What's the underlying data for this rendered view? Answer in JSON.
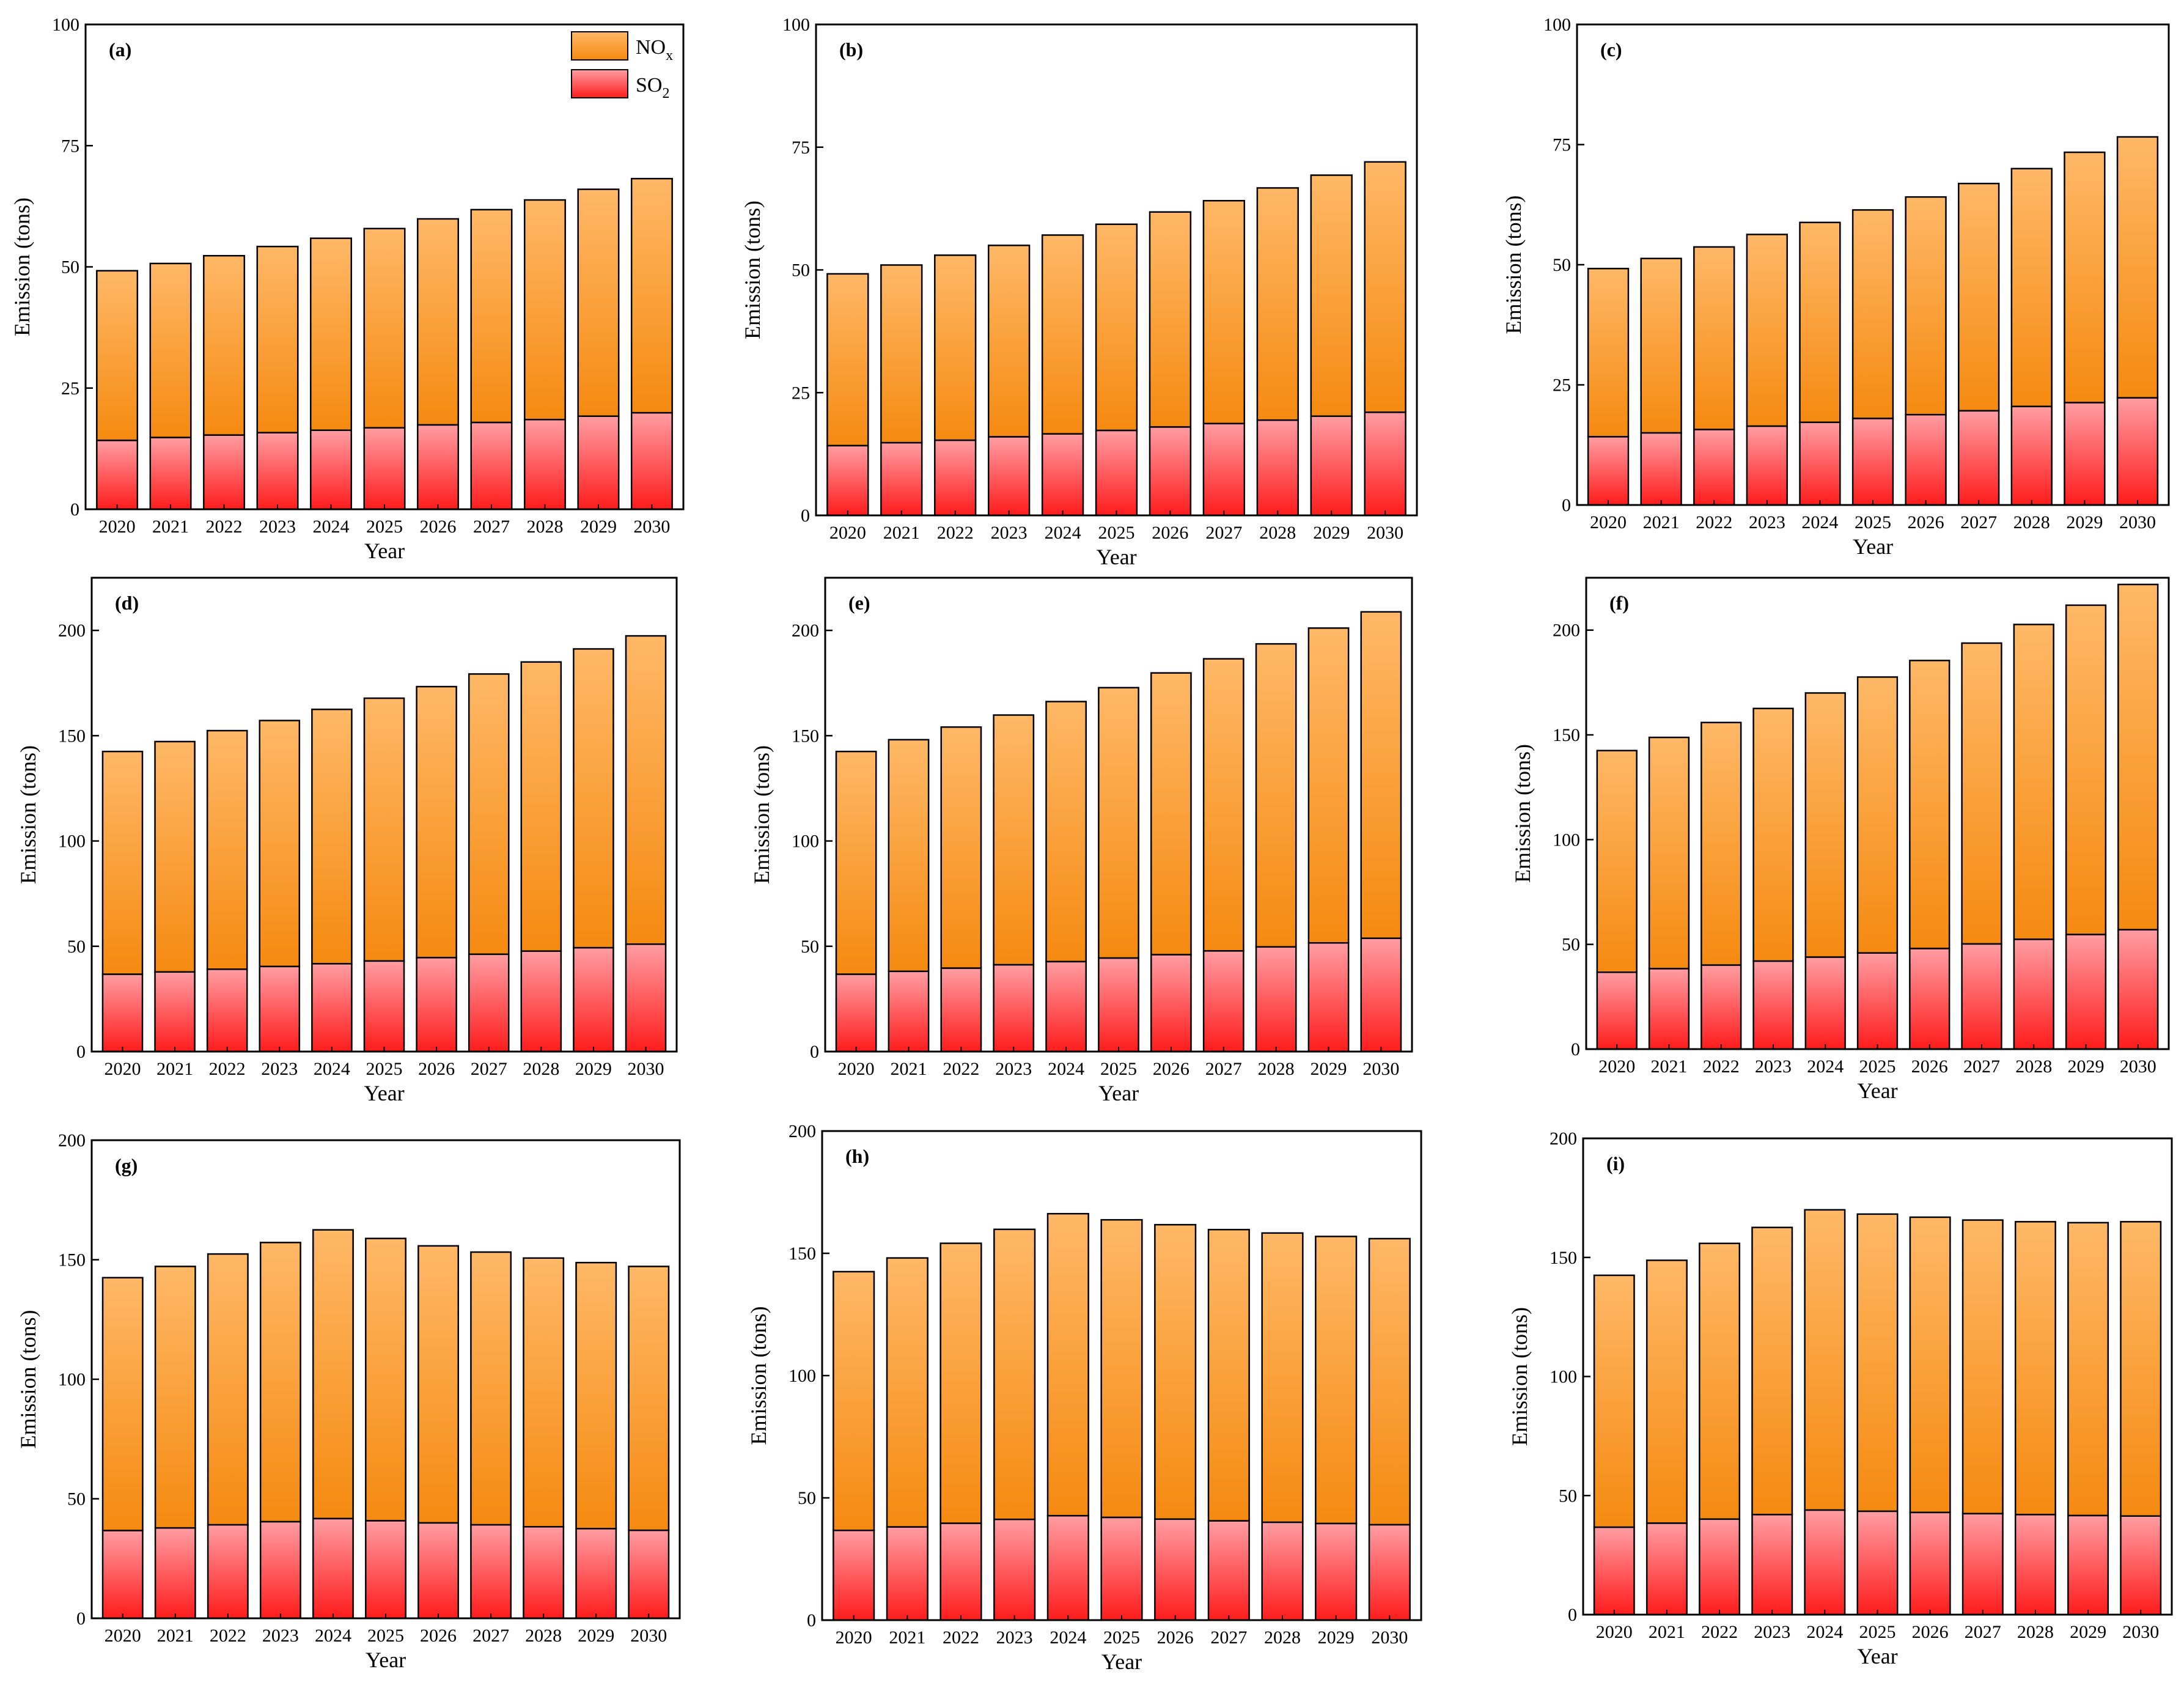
{
  "colors": {
    "nox_top": "#ffb867",
    "nox_bottom": "#f58a10",
    "so2_top": "#ff9da2",
    "so2_bottom": "#ff1c1c",
    "axis": "#000000"
  },
  "legend": {
    "nox_main": "NO",
    "nox_sub": "x",
    "so2_main": "SO",
    "so2_sub": "2"
  },
  "chart_data": [
    {
      "type": "bar",
      "stacked": true,
      "label": "(a)",
      "xlabel": "Year",
      "ylabel": "Emission (tons)",
      "ylim": [
        0,
        100
      ],
      "yticks": [
        0,
        25,
        50,
        75,
        100
      ],
      "categories": [
        "2020",
        "2021",
        "2022",
        "2023",
        "2024",
        "2025",
        "2026",
        "2027",
        "2028",
        "2029",
        "2030"
      ],
      "series": [
        {
          "name": "SO2",
          "values": [
            14.2,
            14.8,
            15.3,
            15.8,
            16.3,
            16.8,
            17.4,
            17.9,
            18.5,
            19.2,
            19.9
          ]
        },
        {
          "name": "NOx",
          "values": [
            35.0,
            35.9,
            37.0,
            38.4,
            39.6,
            41.1,
            42.5,
            43.9,
            45.3,
            46.8,
            48.3
          ]
        }
      ],
      "totals": [
        49.2,
        50.7,
        52.3,
        54.2,
        55.9,
        57.9,
        59.9,
        61.8,
        63.8,
        66.0,
        68.2
      ]
    },
    {
      "type": "bar",
      "stacked": true,
      "label": "(b)",
      "xlabel": "Year",
      "ylabel": "Emission (tons)",
      "ylim": [
        0,
        100
      ],
      "yticks": [
        0,
        25,
        50,
        75,
        100
      ],
      "categories": [
        "2020",
        "2021",
        "2022",
        "2023",
        "2024",
        "2025",
        "2026",
        "2027",
        "2028",
        "2029",
        "2030"
      ],
      "series": [
        {
          "name": "SO2",
          "values": [
            14.2,
            14.8,
            15.3,
            16.0,
            16.6,
            17.3,
            18.0,
            18.7,
            19.4,
            20.2,
            21.0
          ]
        },
        {
          "name": "NOx",
          "values": [
            35.0,
            36.2,
            37.7,
            39.0,
            40.5,
            42.0,
            43.8,
            45.4,
            47.3,
            49.1,
            51.0
          ]
        }
      ],
      "totals": [
        49.2,
        51.0,
        53.0,
        55.0,
        57.1,
        59.3,
        61.8,
        64.1,
        66.7,
        69.3,
        72.0
      ]
    },
    {
      "type": "bar",
      "stacked": true,
      "label": "(c)",
      "xlabel": "Year",
      "ylabel": "Emission (tons)",
      "ylim": [
        0,
        100
      ],
      "yticks": [
        0,
        25,
        50,
        75,
        100
      ],
      "categories": [
        "2020",
        "2021",
        "2022",
        "2023",
        "2024",
        "2025",
        "2026",
        "2027",
        "2028",
        "2029",
        "2030"
      ],
      "series": [
        {
          "name": "SO2",
          "values": [
            14.2,
            15.0,
            15.7,
            16.4,
            17.2,
            18.0,
            18.8,
            19.6,
            20.5,
            21.3,
            22.3
          ]
        },
        {
          "name": "NOx",
          "values": [
            35.0,
            36.3,
            38.0,
            39.9,
            41.6,
            43.4,
            45.3,
            47.3,
            49.5,
            52.1,
            54.3
          ]
        }
      ],
      "totals": [
        49.2,
        51.3,
        53.7,
        56.3,
        58.8,
        61.4,
        64.1,
        66.9,
        70.0,
        73.4,
        76.6
      ]
    },
    {
      "type": "bar",
      "stacked": true,
      "label": "(d)",
      "xlabel": "Year",
      "ylabel": "Emission (tons)",
      "ylim": [
        0,
        225
      ],
      "yticks": [
        0,
        50,
        100,
        150,
        200
      ],
      "categories": [
        "2020",
        "2021",
        "2022",
        "2023",
        "2024",
        "2025",
        "2026",
        "2027",
        "2028",
        "2029",
        "2030"
      ],
      "series": [
        {
          "name": "SO2",
          "values": [
            36.7,
            37.8,
            39.1,
            40.4,
            41.7,
            43.0,
            44.6,
            46.2,
            47.7,
            49.3,
            51.0
          ]
        },
        {
          "name": "NOx",
          "values": [
            105.8,
            109.4,
            113.3,
            116.8,
            120.8,
            124.8,
            128.7,
            133.1,
            137.3,
            141.9,
            146.4
          ]
        }
      ],
      "totals": [
        142.5,
        147.2,
        152.4,
        157.2,
        162.5,
        167.8,
        173.3,
        179.3,
        185.0,
        191.2,
        197.4
      ]
    },
    {
      "type": "bar",
      "stacked": true,
      "label": "(e)",
      "xlabel": "Year",
      "ylabel": "Emission (tons)",
      "ylim": [
        0,
        225
      ],
      "yticks": [
        0,
        50,
        100,
        150,
        200
      ],
      "categories": [
        "2020",
        "2021",
        "2022",
        "2023",
        "2024",
        "2025",
        "2026",
        "2027",
        "2028",
        "2029",
        "2030"
      ],
      "series": [
        {
          "name": "SO2",
          "values": [
            36.7,
            38.1,
            39.6,
            41.2,
            42.7,
            44.4,
            46.0,
            47.8,
            49.7,
            51.6,
            53.8
          ]
        },
        {
          "name": "NOx",
          "values": [
            105.8,
            110.0,
            114.5,
            118.6,
            123.5,
            128.4,
            133.8,
            138.7,
            143.9,
            149.5,
            155.0
          ]
        }
      ],
      "totals": [
        142.5,
        148.1,
        154.1,
        159.8,
        166.2,
        172.8,
        179.8,
        186.5,
        193.6,
        201.1,
        208.8
      ]
    },
    {
      "type": "bar",
      "stacked": true,
      "label": "(f)",
      "xlabel": "Year",
      "ylabel": "Emission (tons)",
      "ylim": [
        0,
        225
      ],
      "yticks": [
        0,
        50,
        100,
        150,
        200
      ],
      "categories": [
        "2020",
        "2021",
        "2022",
        "2023",
        "2024",
        "2025",
        "2026",
        "2027",
        "2028",
        "2029",
        "2030"
      ],
      "series": [
        {
          "name": "SO2",
          "values": [
            36.7,
            38.4,
            40.1,
            42.0,
            43.9,
            45.9,
            48.0,
            50.2,
            52.4,
            54.7,
            57.0
          ]
        },
        {
          "name": "NOx",
          "values": [
            105.8,
            110.4,
            115.8,
            120.6,
            126.1,
            131.7,
            137.5,
            143.6,
            150.3,
            157.2,
            164.8
          ]
        }
      ],
      "totals": [
        142.5,
        148.8,
        155.9,
        162.6,
        170.0,
        177.6,
        185.5,
        193.8,
        202.7,
        211.9,
        221.8
      ]
    },
    {
      "type": "bar",
      "stacked": true,
      "label": "(g)",
      "xlabel": "Year",
      "ylabel": "Emission (tons)",
      "ylim": [
        0,
        200
      ],
      "yticks": [
        0,
        50,
        100,
        150,
        200
      ],
      "categories": [
        "2020",
        "2021",
        "2022",
        "2023",
        "2024",
        "2025",
        "2026",
        "2027",
        "2028",
        "2029",
        "2030"
      ],
      "series": [
        {
          "name": "SO2",
          "values": [
            36.7,
            37.8,
            39.1,
            40.4,
            41.7,
            40.8,
            39.9,
            39.1,
            38.3,
            37.5,
            36.8
          ]
        },
        {
          "name": "NOx",
          "values": [
            105.8,
            109.4,
            113.3,
            116.8,
            120.8,
            118.1,
            115.9,
            114.1,
            112.4,
            111.3,
            110.4
          ]
        }
      ],
      "totals": [
        142.5,
        147.2,
        152.4,
        157.2,
        162.5,
        158.9,
        155.8,
        153.2,
        150.7,
        148.8,
        147.2
      ]
    },
    {
      "type": "bar",
      "stacked": true,
      "label": "(h)",
      "xlabel": "Year",
      "ylabel": "Emission (tons)",
      "ylim": [
        0,
        200
      ],
      "yticks": [
        0,
        50,
        100,
        150,
        200
      ],
      "categories": [
        "2020",
        "2021",
        "2022",
        "2023",
        "2024",
        "2025",
        "2026",
        "2027",
        "2028",
        "2029",
        "2030"
      ],
      "series": [
        {
          "name": "SO2",
          "values": [
            36.7,
            38.1,
            39.6,
            41.2,
            42.7,
            42.0,
            41.3,
            40.6,
            40.0,
            39.5,
            39.0
          ]
        },
        {
          "name": "NOx",
          "values": [
            105.8,
            110.0,
            114.5,
            118.6,
            123.5,
            121.7,
            120.4,
            119.1,
            118.3,
            117.4,
            117.0
          ]
        }
      ],
      "totals": [
        142.5,
        148.1,
        154.1,
        159.8,
        166.2,
        163.7,
        161.7,
        159.7,
        158.3,
        156.9,
        156.0
      ]
    },
    {
      "type": "bar",
      "stacked": true,
      "label": "(i)",
      "xlabel": "Year",
      "ylabel": "Emission (tons)",
      "ylim": [
        0,
        200
      ],
      "yticks": [
        0,
        50,
        100,
        150,
        200
      ],
      "categories": [
        "2020",
        "2021",
        "2022",
        "2023",
        "2024",
        "2025",
        "2026",
        "2027",
        "2028",
        "2029",
        "2030"
      ],
      "series": [
        {
          "name": "SO2",
          "values": [
            36.7,
            38.4,
            40.1,
            42.0,
            43.9,
            43.4,
            42.9,
            42.4,
            42.0,
            41.6,
            41.4
          ]
        },
        {
          "name": "NOx",
          "values": [
            105.8,
            110.4,
            115.8,
            120.6,
            126.1,
            124.8,
            124.0,
            123.3,
            123.0,
            123.0,
            123.6
          ]
        }
      ],
      "totals": [
        142.5,
        148.8,
        155.9,
        162.6,
        170.0,
        168.2,
        166.9,
        165.7,
        165.0,
        164.6,
        165.0
      ]
    }
  ]
}
